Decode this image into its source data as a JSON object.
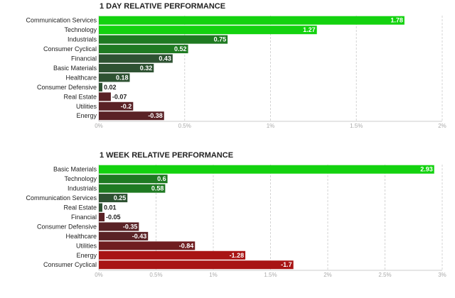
{
  "chart_data": [
    {
      "type": "bar",
      "orientation": "horizontal",
      "title": "1 DAY RELATIVE PERFORMANCE",
      "categories": [
        "Communication Services",
        "Technology",
        "Industrials",
        "Consumer Cyclical",
        "Financial",
        "Basic Materials",
        "Healthcare",
        "Consumer Defensive",
        "Real Estate",
        "Utilities",
        "Energy"
      ],
      "values": [
        1.78,
        1.27,
        0.75,
        0.52,
        0.43,
        0.32,
        0.18,
        0.02,
        -0.07,
        -0.2,
        -0.38
      ],
      "value_labels": [
        "1.78",
        "1.27",
        "0.75",
        "0.52",
        "0.43",
        "0.32",
        "0.18",
        "0.02",
        "-0.07",
        "-0.2",
        "-0.38"
      ],
      "xlim": [
        0,
        2
      ],
      "xticks": [
        0,
        0.5,
        1,
        1.5,
        2
      ],
      "xtick_labels": [
        "0%",
        "0.5%",
        "1%",
        "1.5%",
        "2%"
      ],
      "grid": true
    },
    {
      "type": "bar",
      "orientation": "horizontal",
      "title": "1 WEEK RELATIVE PERFORMANCE",
      "categories": [
        "Basic Materials",
        "Technology",
        "Industrials",
        "Communication Services",
        "Real Estate",
        "Financial",
        "Consumer Defensive",
        "Healthcare",
        "Utilities",
        "Energy",
        "Consumer Cyclical"
      ],
      "values": [
        2.93,
        0.6,
        0.58,
        0.25,
        0.01,
        -0.05,
        -0.35,
        -0.43,
        -0.84,
        -1.28,
        -1.7
      ],
      "value_labels": [
        "2.93",
        "0.6",
        "0.58",
        "0.25",
        "0.01",
        "-0.05",
        "-0.35",
        "-0.43",
        "-0.84",
        "-1.28",
        "-1.7"
      ],
      "xlim": [
        0,
        3
      ],
      "xticks": [
        0,
        0.5,
        1,
        1.5,
        2,
        2.5,
        3
      ],
      "xtick_labels": [
        "0%",
        "0.5%",
        "1%",
        "1.5%",
        "2%",
        "2.5%",
        "3%"
      ],
      "grid": true
    }
  ]
}
